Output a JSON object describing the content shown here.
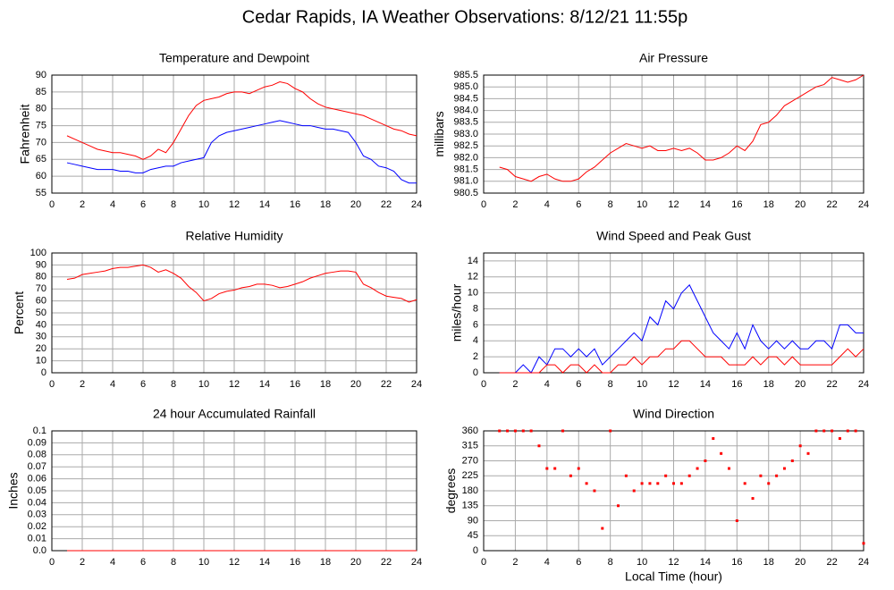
{
  "title": "Cedar Rapids, IA Weather Observations: 8/12/21 11:55p",
  "chart_data": [
    {
      "type": "line",
      "title": "Temperature and Dewpoint",
      "y_label": "Fahrenheit",
      "grid": true,
      "x": [
        1,
        1.5,
        2,
        2.5,
        3,
        3.5,
        4,
        4.5,
        5,
        5.5,
        6,
        6.5,
        7,
        7.5,
        8,
        8.5,
        9,
        9.5,
        10,
        10.5,
        11,
        11.5,
        12,
        12.5,
        13,
        13.5,
        14,
        14.5,
        15,
        15.5,
        16,
        16.5,
        17,
        17.5,
        18,
        18.5,
        19,
        19.5,
        20,
        20.5,
        21,
        21.5,
        22,
        22.5,
        23,
        23.5,
        24
      ],
      "series": [
        {
          "color": "#ff0000",
          "values": [
            72,
            71,
            70,
            69,
            68,
            67.5,
            67,
            67,
            66.5,
            66,
            65,
            66,
            68,
            67,
            70,
            74,
            78,
            81,
            82.5,
            83,
            83.5,
            84.5,
            85,
            85,
            84.5,
            85.5,
            86.5,
            87,
            88,
            87.5,
            86,
            85,
            83,
            81.5,
            80.5,
            80,
            79.5,
            79,
            78.5,
            78,
            77,
            76,
            75,
            74,
            73.5,
            72.5,
            72
          ]
        },
        {
          "color": "#0000ff",
          "values": [
            64,
            63.5,
            63,
            62.5,
            62,
            62,
            62,
            61.5,
            61.5,
            61,
            61,
            62,
            62.5,
            63,
            63,
            64,
            64.5,
            65,
            65.5,
            70,
            72,
            73,
            73.5,
            74,
            74.5,
            75,
            75.5,
            76,
            76.5,
            76,
            75.5,
            75,
            75,
            74.5,
            74,
            74,
            73.5,
            73,
            70,
            66,
            65,
            63,
            62.5,
            61.5,
            59,
            58,
            58
          ]
        }
      ],
      "xlim": [
        0,
        24
      ],
      "xticks": [
        0,
        2,
        4,
        6,
        8,
        10,
        12,
        14,
        16,
        18,
        20,
        22,
        24
      ],
      "ylim": [
        55,
        90
      ],
      "yticks": [
        55,
        60,
        65,
        70,
        75,
        80,
        85,
        90
      ]
    },
    {
      "type": "line",
      "title": "Air Pressure",
      "y_label": "millibars",
      "grid": true,
      "x": [
        1,
        1.5,
        2,
        2.5,
        3,
        3.5,
        4,
        4.5,
        5,
        5.5,
        6,
        6.5,
        7,
        7.5,
        8,
        8.5,
        9,
        9.5,
        10,
        10.5,
        11,
        11.5,
        12,
        12.5,
        13,
        13.5,
        14,
        14.5,
        15,
        15.5,
        16,
        16.5,
        17,
        17.5,
        18,
        18.5,
        19,
        19.5,
        20,
        20.5,
        21,
        21.5,
        22,
        22.5,
        23,
        23.5,
        24
      ],
      "series": [
        {
          "color": "#ff0000",
          "values": [
            981.6,
            981.5,
            981.2,
            981.1,
            981.0,
            981.2,
            981.3,
            981.1,
            981.0,
            981.0,
            981.1,
            981.4,
            981.6,
            981.9,
            982.2,
            982.4,
            982.6,
            982.5,
            982.4,
            982.5,
            982.3,
            982.3,
            982.4,
            982.3,
            982.4,
            982.2,
            981.9,
            981.9,
            982.0,
            982.2,
            982.5,
            982.3,
            982.7,
            983.4,
            983.5,
            983.8,
            984.2,
            984.4,
            984.6,
            984.8,
            985.0,
            985.1,
            985.4,
            985.3,
            985.2,
            985.3,
            985.5
          ]
        }
      ],
      "xlim": [
        0,
        24
      ],
      "xticks": [
        0,
        2,
        4,
        6,
        8,
        10,
        12,
        14,
        16,
        18,
        20,
        22,
        24
      ],
      "ylim": [
        980.5,
        985.5
      ],
      "yticks": [
        980.5,
        {
          "value": 981,
          "label": "981.0"
        },
        981.5,
        {
          "value": 982,
          "label": "982.0"
        },
        982.5,
        {
          "value": 983,
          "label": "983.0"
        },
        983.5,
        {
          "value": 984,
          "label": "984.0"
        },
        984.5,
        {
          "value": 985,
          "label": "985.0"
        },
        985.5
      ]
    },
    {
      "type": "line",
      "title": "Relative Humidity",
      "y_label": "Percent",
      "grid": true,
      "x": [
        1,
        1.5,
        2,
        2.5,
        3,
        3.5,
        4,
        4.5,
        5,
        5.5,
        6,
        6.5,
        7,
        7.5,
        8,
        8.5,
        9,
        9.5,
        10,
        10.5,
        11,
        11.5,
        12,
        12.5,
        13,
        13.5,
        14,
        14.5,
        15,
        15.5,
        16,
        16.5,
        17,
        17.5,
        18,
        18.5,
        19,
        19.5,
        20,
        20.5,
        21,
        21.5,
        22,
        22.5,
        23,
        23.5,
        24
      ],
      "series": [
        {
          "color": "#ff0000",
          "values": [
            78,
            79,
            82,
            83,
            84,
            85,
            87,
            88,
            88,
            89,
            90,
            88,
            84,
            86,
            83,
            79,
            72,
            67,
            60,
            62,
            66,
            68,
            69,
            71,
            72,
            74,
            74,
            73,
            71,
            72,
            74,
            76,
            79,
            81,
            83,
            84,
            85,
            85,
            84,
            74,
            71,
            67,
            64,
            63,
            62,
            59,
            61
          ]
        }
      ],
      "xlim": [
        0,
        24
      ],
      "xticks": [
        0,
        2,
        4,
        6,
        8,
        10,
        12,
        14,
        16,
        18,
        20,
        22,
        24
      ],
      "ylim": [
        0,
        100
      ],
      "yticks": [
        0,
        10,
        20,
        30,
        40,
        50,
        60,
        70,
        80,
        90,
        100
      ]
    },
    {
      "type": "line",
      "title": "Wind Speed and Peak Gust",
      "y_label": "miles/hour",
      "grid": true,
      "x": [
        1,
        1.5,
        2,
        2.5,
        3,
        3.5,
        4,
        4.5,
        5,
        5.5,
        6,
        6.5,
        7,
        7.5,
        8,
        8.5,
        9,
        9.5,
        10,
        10.5,
        11,
        11.5,
        12,
        12.5,
        13,
        13.5,
        14,
        14.5,
        15,
        15.5,
        16,
        16.5,
        17,
        17.5,
        18,
        18.5,
        19,
        19.5,
        20,
        20.5,
        21,
        21.5,
        22,
        22.5,
        23,
        23.5,
        24
      ],
      "series": [
        {
          "color": "#0000ff",
          "values": [
            0,
            0,
            0,
            1,
            0,
            2,
            1,
            3,
            3,
            2,
            3,
            2,
            3,
            1,
            2,
            3,
            4,
            5,
            4,
            7,
            6,
            9,
            8,
            10,
            11,
            9,
            7,
            5,
            4,
            3,
            5,
            3,
            6,
            4,
            3,
            4,
            3,
            4,
            3,
            3,
            4,
            4,
            3,
            6,
            6,
            5,
            5
          ]
        },
        {
          "color": "#ff0000",
          "values": [
            0,
            0,
            0,
            0,
            0,
            0,
            1,
            1,
            0,
            1,
            1,
            0,
            1,
            0,
            0,
            1,
            1,
            2,
            1,
            2,
            2,
            3,
            3,
            4,
            4,
            3,
            2,
            2,
            2,
            1,
            1,
            1,
            2,
            1,
            2,
            2,
            1,
            2,
            1,
            1,
            1,
            1,
            1,
            2,
            3,
            2,
            3
          ]
        }
      ],
      "xlim": [
        0,
        24
      ],
      "xticks": [
        0,
        2,
        4,
        6,
        8,
        10,
        12,
        14,
        16,
        18,
        20,
        22,
        24
      ],
      "ylim": [
        0,
        15
      ],
      "yticks": [
        0,
        2,
        4,
        6,
        8,
        10,
        12,
        14
      ]
    },
    {
      "type": "line",
      "title": "24 hour Accumulated Rainfall",
      "y_label": "Inches",
      "grid": true,
      "x": [
        1,
        1.5,
        2,
        2.5,
        3,
        3.5,
        4,
        4.5,
        5,
        5.5,
        6,
        6.5,
        7,
        7.5,
        8,
        8.5,
        9,
        9.5,
        10,
        10.5,
        11,
        11.5,
        12,
        12.5,
        13,
        13.5,
        14,
        14.5,
        15,
        15.5,
        16,
        16.5,
        17,
        17.5,
        18,
        18.5,
        19,
        19.5,
        20,
        20.5,
        21,
        21.5,
        22,
        22.5,
        23,
        23.5,
        24
      ],
      "series": [
        {
          "color": "#ff0000",
          "values": [
            0,
            0,
            0,
            0,
            0,
            0,
            0,
            0,
            0,
            0,
            0,
            0,
            0,
            0,
            0,
            0,
            0,
            0,
            0,
            0,
            0,
            0,
            0,
            0,
            0,
            0,
            0,
            0,
            0,
            0,
            0,
            0,
            0,
            0,
            0,
            0,
            0,
            0,
            0,
            0,
            0,
            0,
            0,
            0,
            0,
            0,
            0
          ]
        }
      ],
      "xlim": [
        0,
        24
      ],
      "xticks": [
        0,
        2,
        4,
        6,
        8,
        10,
        12,
        14,
        16,
        18,
        20,
        22,
        24
      ],
      "ylim": [
        0,
        0.1
      ],
      "yticks": [
        {
          "value": 0,
          "label": "0.0"
        },
        0.01,
        0.02,
        0.03,
        0.04,
        0.05,
        0.06,
        0.07,
        0.08,
        0.09,
        {
          "value": 0.1,
          "label": "0.1"
        }
      ]
    },
    {
      "type": "scatter",
      "title": "Wind Direction",
      "y_label": "degrees",
      "x_label": "Local Time (hour)",
      "grid": true,
      "x": [
        1,
        1.5,
        2,
        2.5,
        3,
        3.5,
        4,
        4.5,
        5,
        5.5,
        6,
        6.5,
        7,
        7.5,
        8,
        8.5,
        9,
        9.5,
        10,
        10.5,
        11,
        11.5,
        12,
        12.5,
        13,
        13.5,
        14,
        14.5,
        15,
        15.5,
        16,
        16.5,
        17,
        17.5,
        18,
        18.5,
        19,
        19.5,
        20,
        20.5,
        21,
        21.5,
        22,
        22.5,
        23,
        23.5,
        24
      ],
      "series": [
        {
          "color": "#ff0000",
          "values": [
            360,
            360,
            360,
            360,
            360,
            315,
            247,
            247,
            360,
            225,
            247,
            202,
            180,
            67,
            360,
            135,
            225,
            180,
            202,
            202,
            202,
            225,
            202,
            202,
            225,
            247,
            270,
            337,
            292,
            247,
            90,
            202,
            157,
            225,
            202,
            225,
            247,
            270,
            315,
            292,
            360,
            360,
            360,
            337,
            360,
            360,
            22
          ]
        }
      ],
      "xlim": [
        0,
        24
      ],
      "xticks": [
        0,
        2,
        4,
        6,
        8,
        10,
        12,
        14,
        16,
        18,
        20,
        22,
        24
      ],
      "ylim": [
        0,
        360
      ],
      "yticks": [
        0,
        45,
        90,
        135,
        180,
        225,
        270,
        315,
        360
      ]
    }
  ]
}
